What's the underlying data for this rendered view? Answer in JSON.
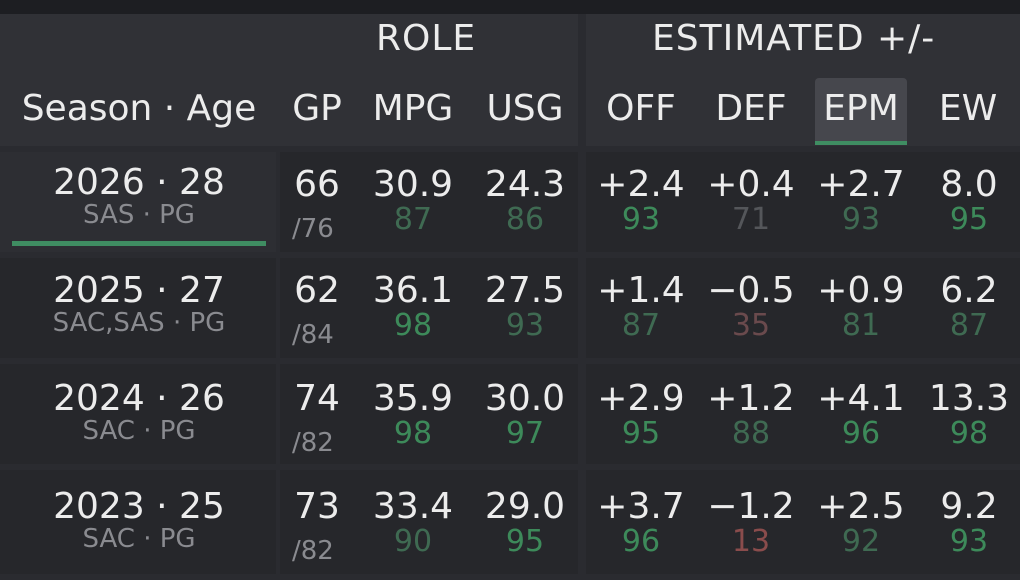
{
  "headers": {
    "role": "ROLE",
    "estimated": "ESTIMATED +/-",
    "columns": {
      "season_age": "Season · Age",
      "gp": "GP",
      "mpg": "MPG",
      "usg": "USG",
      "off": "OFF",
      "def": "DEF",
      "epm": "EPM",
      "ew": "EW"
    }
  },
  "colors": {
    "green_strong": "#3d8a5a",
    "green_mid": "#3f6a52",
    "gray": "#54565a",
    "red_mid": "#6a4a4d",
    "red_strong": "#8a4c4c"
  },
  "rows": [
    {
      "season_age": "2026 · 28",
      "team": "SAS · PG",
      "gp": "66",
      "gp_total": "/76",
      "mpg": "30.9",
      "mpg_pct": "87",
      "usg": "24.3",
      "usg_pct": "86",
      "off": "+2.4",
      "off_pct": "93",
      "def": "+0.4",
      "def_pct": "71",
      "epm": "+2.7",
      "epm_pct": "93",
      "ew": "8.0",
      "ew_pct": "95"
    },
    {
      "season_age": "2025 · 27",
      "team": "SAC,SAS · PG",
      "gp": "62",
      "gp_total": "/84",
      "mpg": "36.1",
      "mpg_pct": "98",
      "usg": "27.5",
      "usg_pct": "93",
      "off": "+1.4",
      "off_pct": "87",
      "def": "−0.5",
      "def_pct": "35",
      "epm": "+0.9",
      "epm_pct": "81",
      "ew": "6.2",
      "ew_pct": "87"
    },
    {
      "season_age": "2024 · 26",
      "team": "SAC · PG",
      "gp": "74",
      "gp_total": "/82",
      "mpg": "35.9",
      "mpg_pct": "98",
      "usg": "30.0",
      "usg_pct": "97",
      "off": "+2.9",
      "off_pct": "95",
      "def": "+1.2",
      "def_pct": "88",
      "epm": "+4.1",
      "epm_pct": "96",
      "ew": "13.3",
      "ew_pct": "98"
    },
    {
      "season_age": "2023 · 25",
      "team": "SAC · PG",
      "gp": "73",
      "gp_total": "/82",
      "mpg": "33.4",
      "mpg_pct": "90",
      "usg": "29.0",
      "usg_pct": "95",
      "off": "+3.7",
      "off_pct": "96",
      "def": "−1.2",
      "def_pct": "13",
      "epm": "+2.5",
      "epm_pct": "92",
      "ew": "9.2",
      "ew_pct": "93"
    }
  ]
}
